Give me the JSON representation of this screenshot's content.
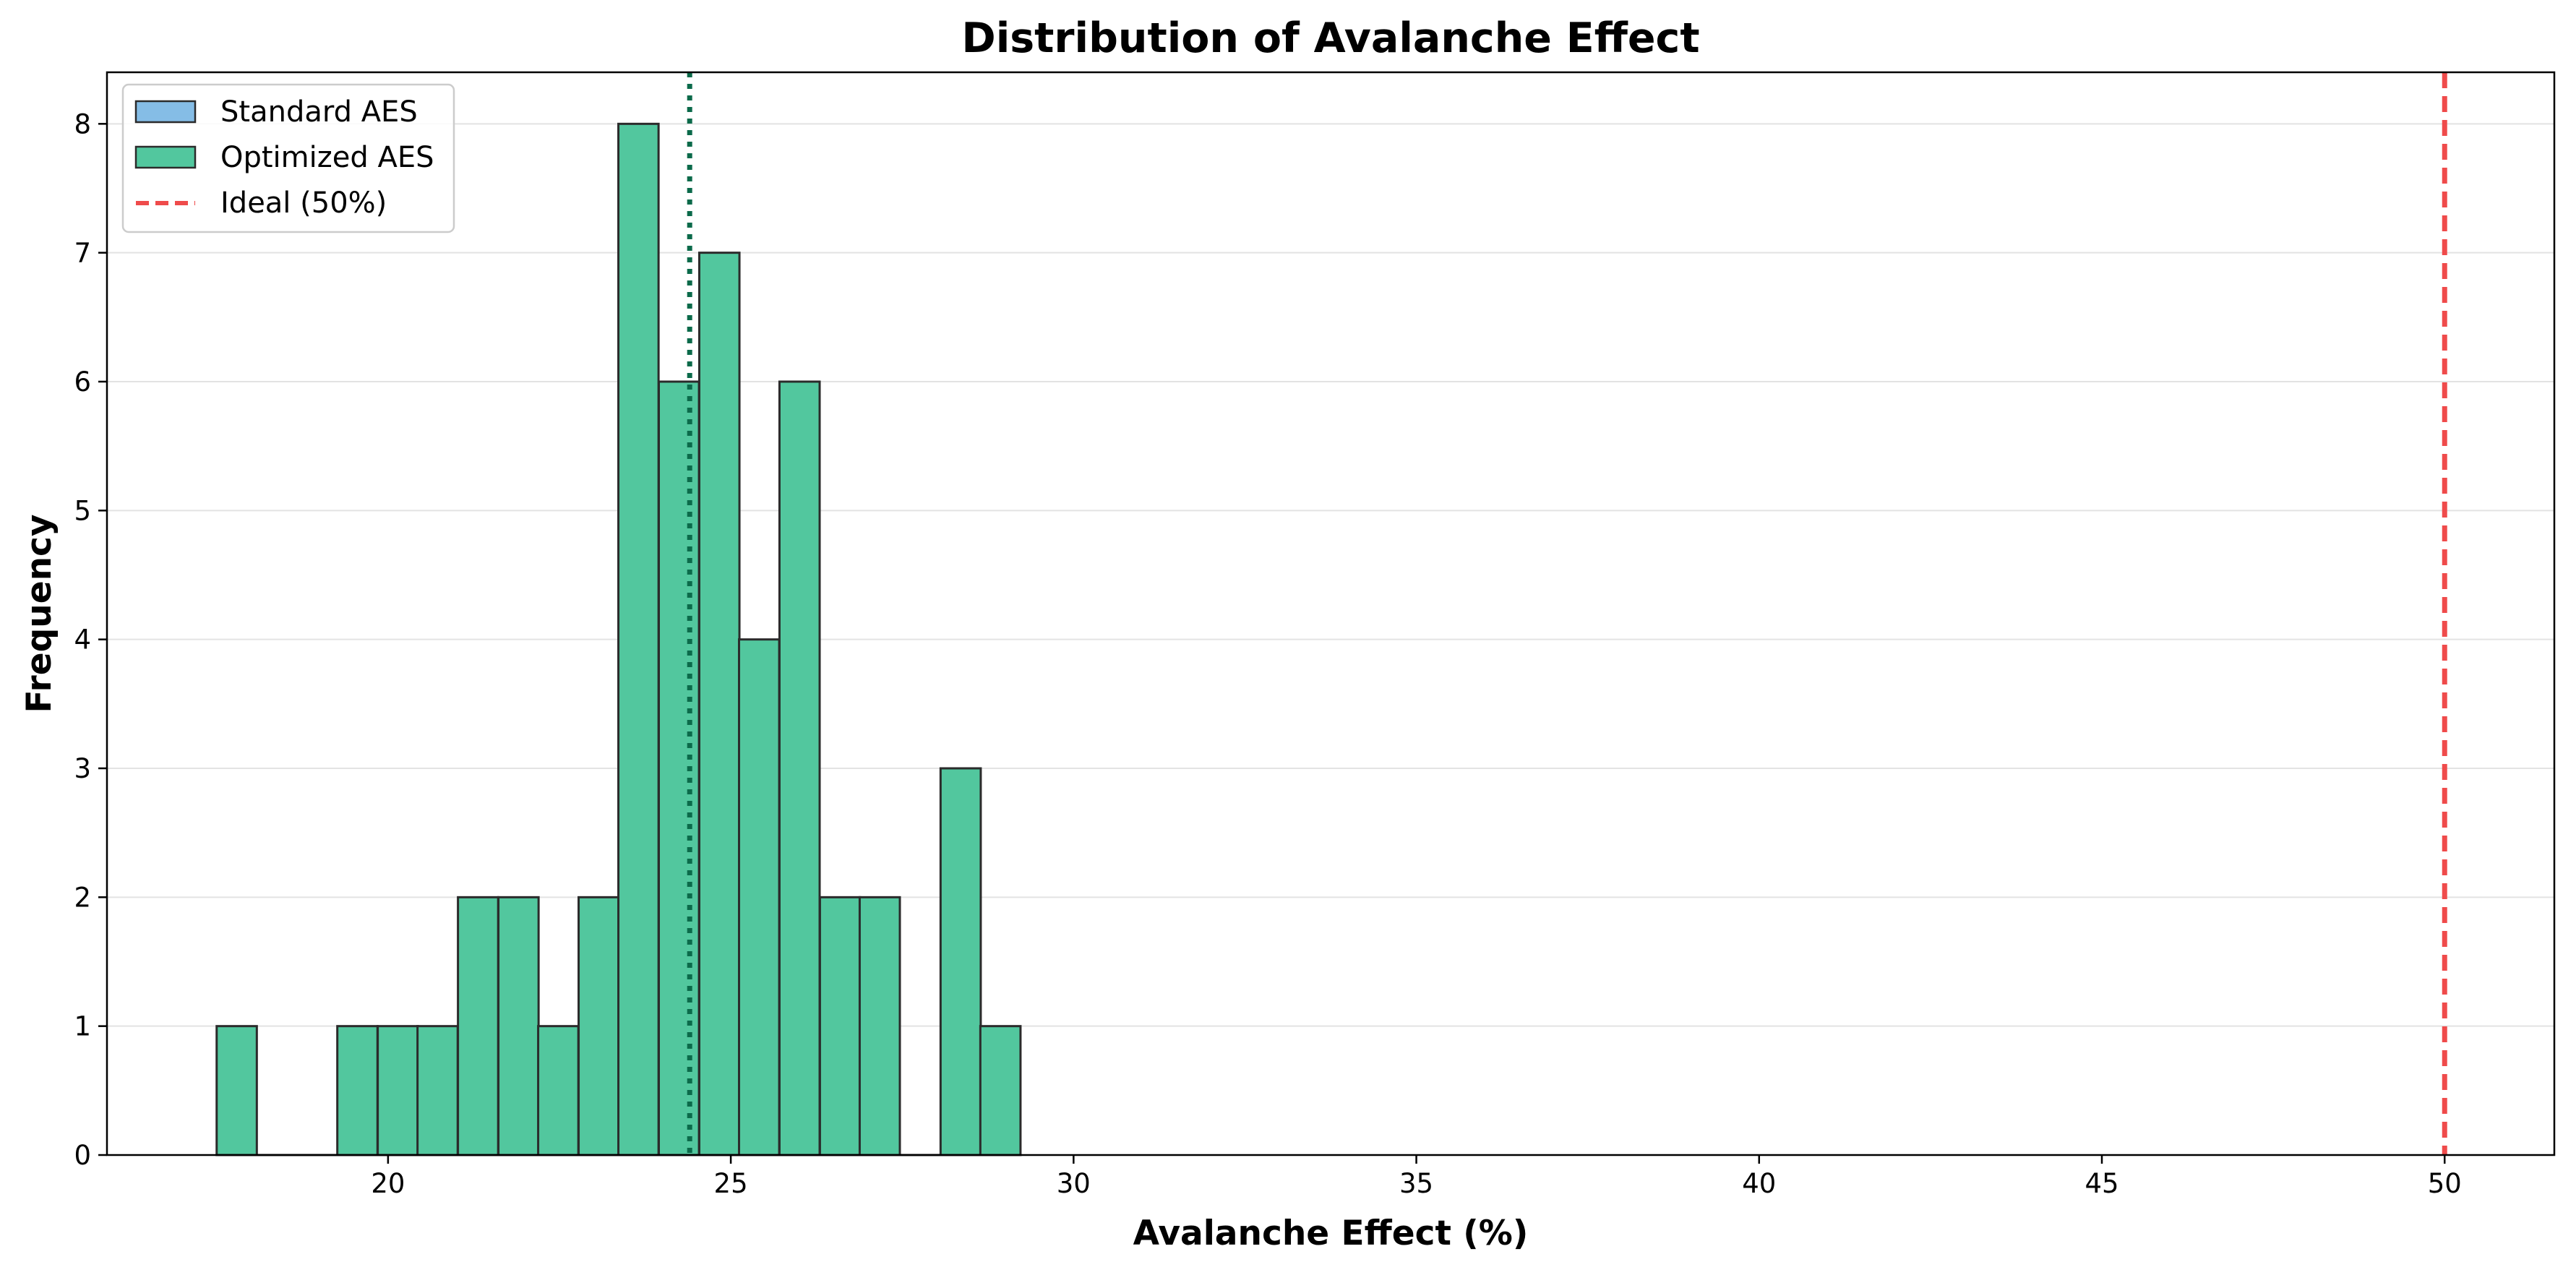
{
  "chart_data": {
    "type": "bar",
    "title": "Distribution of Avalanche Effect",
    "xlabel": "Avalanche Effect (%)",
    "ylabel": "Frequency",
    "xlim": [
      15.9,
      51.6
    ],
    "ylim": [
      0,
      8.4
    ],
    "xticks": [
      20,
      25,
      30,
      35,
      40,
      45,
      50
    ],
    "yticks": [
      0,
      1,
      2,
      3,
      4,
      5,
      6,
      7,
      8
    ],
    "grid": "y",
    "legend_position": "top-left",
    "colors": {
      "standard_fill": "#85bde6",
      "optimized_fill": "#52c79e",
      "bar_edge": "#2b2b2b",
      "ideal_line": "#ef4b4b",
      "mean_line": "#0b6a4a",
      "grid": "#e3e3e3"
    },
    "bin_width": 0.586,
    "series": [
      {
        "name": "Standard AES",
        "bins": []
      },
      {
        "name": "Optimized AES",
        "bins": [
          {
            "x0": 17.5,
            "count": 1
          },
          {
            "x0": 18.09,
            "count": 0
          },
          {
            "x0": 18.67,
            "count": 0
          },
          {
            "x0": 19.26,
            "count": 1
          },
          {
            "x0": 19.85,
            "count": 1
          },
          {
            "x0": 20.43,
            "count": 1
          },
          {
            "x0": 21.02,
            "count": 2
          },
          {
            "x0": 21.61,
            "count": 2
          },
          {
            "x0": 22.19,
            "count": 1
          },
          {
            "x0": 22.78,
            "count": 2
          },
          {
            "x0": 23.36,
            "count": 8
          },
          {
            "x0": 23.95,
            "count": 6
          },
          {
            "x0": 24.54,
            "count": 7
          },
          {
            "x0": 25.12,
            "count": 4
          },
          {
            "x0": 25.71,
            "count": 6
          },
          {
            "x0": 26.3,
            "count": 2
          },
          {
            "x0": 26.88,
            "count": 2
          },
          {
            "x0": 27.47,
            "count": 0
          },
          {
            "x0": 28.06,
            "count": 3
          },
          {
            "x0": 28.64,
            "count": 1
          }
        ]
      }
    ],
    "reference_lines": [
      {
        "name": "Ideal (50%)",
        "x": 50,
        "style": "dashed",
        "in_legend": true
      },
      {
        "name": "",
        "x": 24.4,
        "style": "dotted",
        "in_legend": false
      }
    ]
  }
}
